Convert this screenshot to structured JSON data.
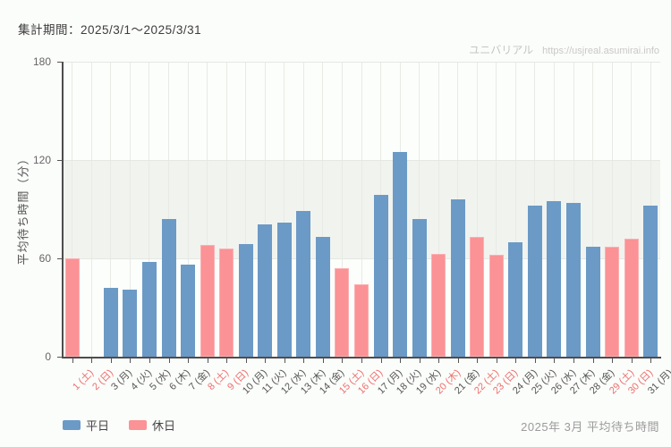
{
  "header": {
    "period": "集計期間：2025/3/1～2025/3/31"
  },
  "watermark": {
    "site": "ユニバリアル",
    "url": "https://usjreal.asumirai.info"
  },
  "chart_data": {
    "type": "bar",
    "title": "2025年 3月 平均待ち時間",
    "xlabel": "",
    "ylabel": "平均待ち時間（分）",
    "ylim": [
      0,
      180
    ],
    "y_ticks": [
      0,
      60,
      120,
      180
    ],
    "grid": true,
    "legend_position": "bottom-left",
    "categories": [
      "1 (土)",
      "2 (日)",
      "3 (月)",
      "4 (火)",
      "5 (水)",
      "6 (木)",
      "7 (金)",
      "8 (土)",
      "9 (日)",
      "10 (月)",
      "11 (火)",
      "12 (水)",
      "13 (木)",
      "14 (金)",
      "15 (土)",
      "16 (日)",
      "17 (月)",
      "18 (火)",
      "19 (水)",
      "20 (木)",
      "21 (金)",
      "22 (土)",
      "23 (日)",
      "24 (月)",
      "25 (火)",
      "26 (水)",
      "27 (木)",
      "28 (金)",
      "29 (土)",
      "30 (日)",
      "31 (月)"
    ],
    "values": [
      60,
      0,
      42,
      41,
      58,
      84,
      56,
      68,
      66,
      69,
      81,
      82,
      89,
      73,
      54,
      44,
      99,
      125,
      84,
      63,
      96,
      73,
      62,
      70,
      92,
      95,
      94,
      67,
      67,
      72,
      92
    ],
    "day_types": [
      "holiday",
      "holiday",
      "weekday",
      "weekday",
      "weekday",
      "weekday",
      "weekday",
      "holiday",
      "holiday",
      "weekday",
      "weekday",
      "weekday",
      "weekday",
      "weekday",
      "holiday",
      "holiday",
      "weekday",
      "weekday",
      "weekday",
      "holiday",
      "weekday",
      "holiday",
      "holiday",
      "weekday",
      "weekday",
      "weekday",
      "weekday",
      "weekday",
      "holiday",
      "holiday",
      "weekday"
    ],
    "series_colors": {
      "weekday": "#6b9ac6",
      "holiday": "#fb9295"
    },
    "label_colors": {
      "weekday": "#555555",
      "holiday": "#ee6f6f"
    }
  },
  "legend": {
    "items": [
      {
        "key": "weekday",
        "label": "平日"
      },
      {
        "key": "holiday",
        "label": "休日"
      }
    ]
  },
  "footer": {
    "caption": "2025年 3月 平均待ち時間"
  }
}
